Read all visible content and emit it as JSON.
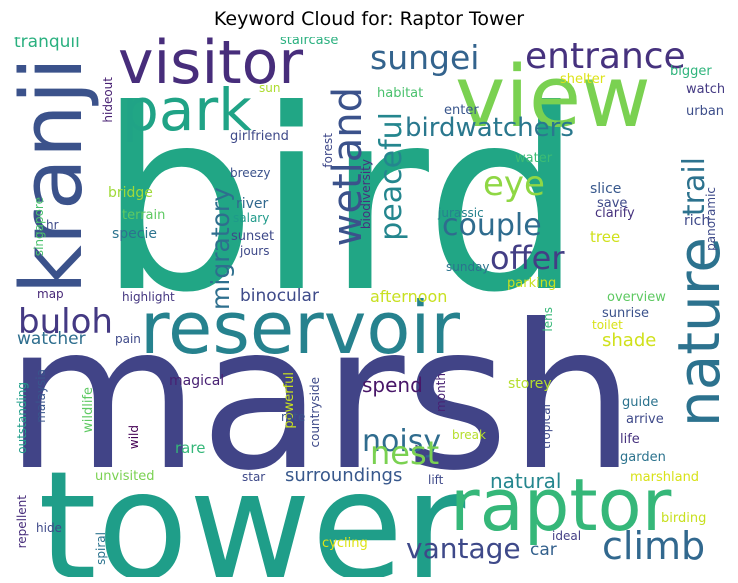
{
  "title": "Keyword Cloud for: Raptor Tower",
  "words": [
    {
      "text": "bird",
      "color": "#21a685"
    },
    {
      "text": "marsh",
      "color": "#414487"
    },
    {
      "text": "tower",
      "color": "#1f9e89"
    },
    {
      "text": "reservoir",
      "color": "#26828e"
    },
    {
      "text": "view",
      "color": "#7ad151"
    },
    {
      "text": "visitor",
      "color": "#472d7b"
    },
    {
      "text": "kranji",
      "color": "#3b528b"
    },
    {
      "text": "raptor",
      "color": "#35b779"
    },
    {
      "text": "nature",
      "color": "#2c728e"
    },
    {
      "text": "park",
      "color": "#20a386"
    },
    {
      "text": "entrance",
      "color": "#46327e"
    },
    {
      "text": "sungei",
      "color": "#33638d"
    },
    {
      "text": "climb",
      "color": "#31688e"
    },
    {
      "text": "wetland",
      "color": "#3b528b"
    },
    {
      "text": "peaceful",
      "color": "#24868e"
    },
    {
      "text": "birdwatchers",
      "color": "#2a788e"
    },
    {
      "text": "eye",
      "color": "#8fd744"
    },
    {
      "text": "couple",
      "color": "#2f6c8e"
    },
    {
      "text": "trail",
      "color": "#2c728e"
    },
    {
      "text": "offer",
      "color": "#433e85"
    },
    {
      "text": "buloh",
      "color": "#443983"
    },
    {
      "text": "migratory",
      "color": "#2e6f8e"
    },
    {
      "text": "noisy",
      "color": "#2f6c8e"
    },
    {
      "text": "nest",
      "color": "#7ad151"
    },
    {
      "text": "vantage",
      "color": "#3e4989"
    },
    {
      "text": "natural",
      "color": "#24868e"
    },
    {
      "text": "spend",
      "color": "#481668"
    },
    {
      "text": "surroundings",
      "color": "#38588c"
    },
    {
      "text": "binocular",
      "color": "#3e4a89"
    },
    {
      "text": "afternoon",
      "color": "#c8e020"
    },
    {
      "text": "watcher",
      "color": "#2e6e8e"
    },
    {
      "text": "shade",
      "color": "#d0e11c"
    },
    {
      "text": "car",
      "color": "#34618d"
    },
    {
      "text": "tranquil",
      "color": "#2ab07f"
    },
    {
      "text": "staircase",
      "color": "#2ab07f"
    },
    {
      "text": "shelter",
      "color": "#dde318"
    },
    {
      "text": "bigger",
      "color": "#2fb47c"
    },
    {
      "text": "habitat",
      "color": "#4ac16d"
    },
    {
      "text": "watch",
      "color": "#443a83"
    },
    {
      "text": "enter",
      "color": "#39568c"
    },
    {
      "text": "urban",
      "color": "#3d4e8a"
    },
    {
      "text": "sun",
      "color": "#addc30"
    },
    {
      "text": "hideout",
      "color": "#482173"
    },
    {
      "text": "girlfriend",
      "color": "#3e4989"
    },
    {
      "text": "forest",
      "color": "#3f4889"
    },
    {
      "text": "biodiversity",
      "color": "#46307e"
    },
    {
      "text": "water",
      "color": "#3dbc74"
    },
    {
      "text": "slice",
      "color": "#38588c"
    },
    {
      "text": "save",
      "color": "#3e4989"
    },
    {
      "text": "clarify",
      "color": "#46327e"
    },
    {
      "text": "rich",
      "color": "#3e4989"
    },
    {
      "text": "panoramic",
      "color": "#3e4a89"
    },
    {
      "text": "singapore",
      "color": "#4ac16d"
    },
    {
      "text": "bridge",
      "color": "#a0da39"
    },
    {
      "text": "terrain",
      "color": "#5ec962"
    },
    {
      "text": "specie",
      "color": "#2c738e"
    },
    {
      "text": "hr",
      "color": "#3e4a89"
    },
    {
      "text": "breezy",
      "color": "#3b528b"
    },
    {
      "text": "river",
      "color": "#31688e"
    },
    {
      "text": "salary",
      "color": "#1f9a8a"
    },
    {
      "text": "sunset",
      "color": "#3e4989"
    },
    {
      "text": "jours",
      "color": "#3e4989"
    },
    {
      "text": "jurassic",
      "color": "#26828e"
    },
    {
      "text": "tree",
      "color": "#d0e11c"
    },
    {
      "text": "sunday",
      "color": "#2c738e"
    },
    {
      "text": "parking",
      "color": "#c8e020"
    },
    {
      "text": "map",
      "color": "#482878"
    },
    {
      "text": "highlight",
      "color": "#453781"
    },
    {
      "text": "lens",
      "color": "#37b878"
    },
    {
      "text": "sunrise",
      "color": "#3b528b"
    },
    {
      "text": "overview",
      "color": "#5ec962"
    },
    {
      "text": "toilet",
      "color": "#d8e219"
    },
    {
      "text": "pain",
      "color": "#3e4989"
    },
    {
      "text": "malaysia",
      "color": "#39568c"
    },
    {
      "text": "magical",
      "color": "#482173"
    },
    {
      "text": "outstanding",
      "color": "#1f9e89"
    },
    {
      "text": "wildlife",
      "color": "#5ec962"
    },
    {
      "text": "wild",
      "color": "#440154"
    },
    {
      "text": "powerful",
      "color": "#c8e020"
    },
    {
      "text": "countryside",
      "color": "#3e4a89"
    },
    {
      "text": "rate",
      "color": "#3b528b"
    },
    {
      "text": "month",
      "color": "#482173"
    },
    {
      "text": "tropical",
      "color": "#3e4a89"
    },
    {
      "text": "storey",
      "color": "#b5de2b"
    },
    {
      "text": "guide",
      "color": "#2c738e"
    },
    {
      "text": "arrive",
      "color": "#3e4989"
    },
    {
      "text": "life",
      "color": "#46327e"
    },
    {
      "text": "garden",
      "color": "#2c738e"
    },
    {
      "text": "break",
      "color": "#b5de2b"
    },
    {
      "text": "star",
      "color": "#3e4989"
    },
    {
      "text": "rare",
      "color": "#35b779"
    },
    {
      "text": "lift",
      "color": "#3e4989"
    },
    {
      "text": "unvisited",
      "color": "#7ad151"
    },
    {
      "text": "repellent",
      "color": "#472d7b"
    },
    {
      "text": "hide",
      "color": "#3e4989"
    },
    {
      "text": "spiral",
      "color": "#2c738e"
    },
    {
      "text": "marshland",
      "color": "#d8e219"
    },
    {
      "text": "birding",
      "color": "#c8e020"
    },
    {
      "text": "ideal",
      "color": "#433e85"
    },
    {
      "text": "cycling",
      "color": "#dde318"
    }
  ]
}
